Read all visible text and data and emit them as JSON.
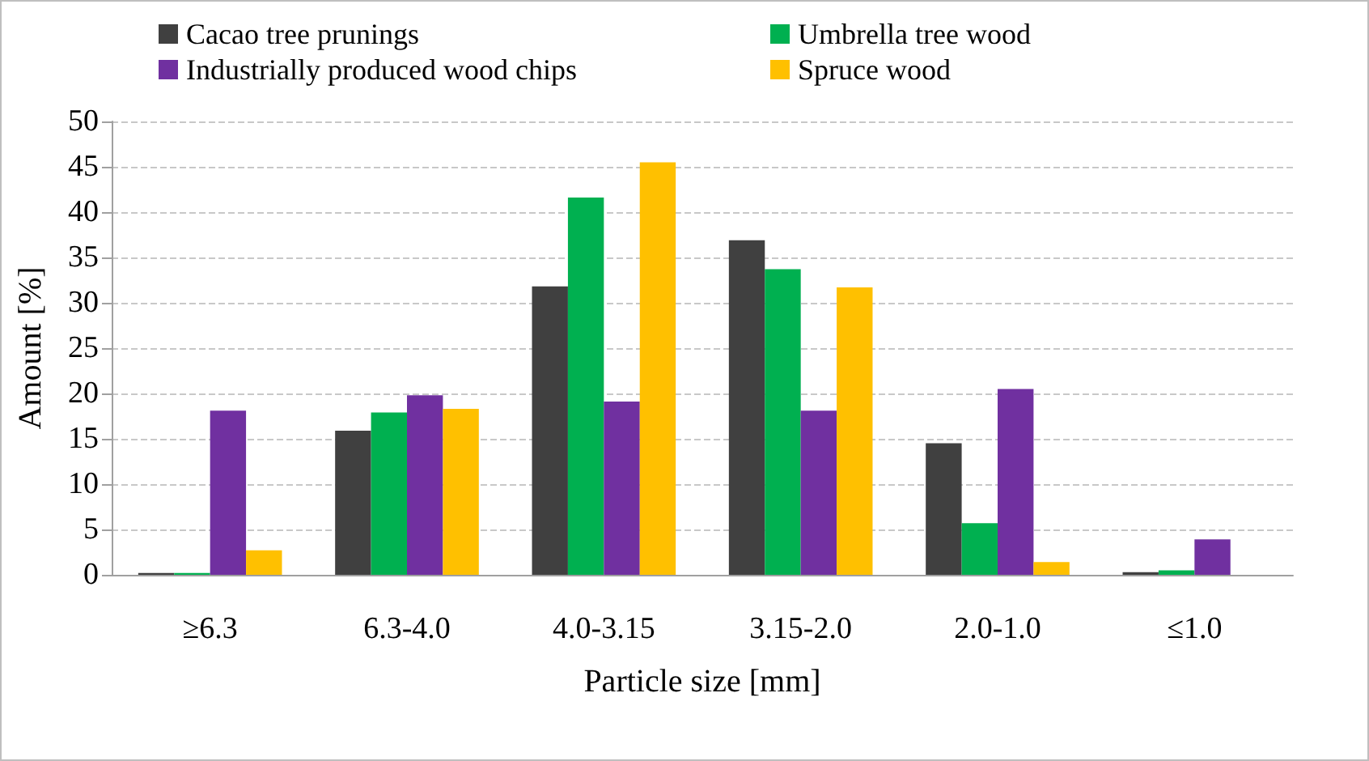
{
  "chart_data": {
    "type": "bar",
    "categories": [
      "≥6.3",
      "6.3-4.0",
      "4.0-3.15",
      "3.15-2.0",
      "2.0-1.0",
      "≤1.0"
    ],
    "series": [
      {
        "name": "Cacao tree prunings",
        "color": "#404040",
        "values": [
          0.2,
          15.9,
          31.8,
          36.9,
          14.5,
          0.3
        ]
      },
      {
        "name": "Umbrella tree wood",
        "color": "#00b050",
        "values": [
          0.2,
          17.9,
          41.6,
          33.7,
          5.7,
          0.5
        ]
      },
      {
        "name": "Industrially produced wood chips",
        "color": "#7030a0",
        "values": [
          18.1,
          19.8,
          19.1,
          18.1,
          20.5,
          3.9
        ]
      },
      {
        "name": "Spruce wood",
        "color": "#ffc000",
        "values": [
          2.7,
          18.3,
          45.5,
          31.7,
          1.4,
          null
        ]
      }
    ],
    "xlabel": "Particle size [mm]",
    "ylabel": "Amount [%]",
    "ylim": [
      0,
      50
    ],
    "yticks": [
      0,
      5,
      10,
      15,
      20,
      25,
      30,
      35,
      40,
      45,
      50
    ],
    "grid": "y",
    "legend": "top"
  }
}
